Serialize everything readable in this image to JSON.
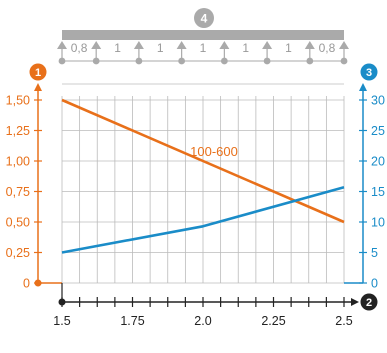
{
  "badges": {
    "left_axis": "1",
    "bottom_axis": "2",
    "right_axis": "3",
    "span_diagram": "4"
  },
  "span_diagram": {
    "segments": [
      "0,8",
      "1",
      "1",
      "1",
      "1",
      "1",
      "0,8"
    ]
  },
  "colors": {
    "left_axis": "#e8701a",
    "right_axis": "#1a8cc8",
    "bottom_axis": "#222222",
    "line_orange": "#e8701a",
    "line_blue": "#1a8cc8",
    "grid": "#bbbbbb",
    "beam": "#aaaaaa"
  },
  "chart_data": {
    "type": "line",
    "title": "",
    "x": {
      "min": 1.5,
      "max": 2.5,
      "ticks": [
        1.5,
        1.75,
        2.0,
        2.25,
        2.5
      ],
      "tick_labels": [
        "1.5",
        "1.75",
        "2.0",
        "2.25",
        "2.5"
      ],
      "minor_step": 0.0625
    },
    "y_left": {
      "min": 0,
      "max": 1.5,
      "ticks": [
        0,
        0.25,
        0.5,
        0.75,
        1.0,
        1.25,
        1.5
      ],
      "tick_labels": [
        "0",
        "0,25",
        "0,50",
        "0,75",
        "1,00",
        "1,25",
        "1,50"
      ]
    },
    "y_right": {
      "min": 0,
      "max": 30,
      "ticks": [
        0,
        5,
        10,
        15,
        20,
        25,
        30
      ],
      "tick_labels": [
        "0",
        "5",
        "10",
        "15",
        "20",
        "25",
        "30"
      ]
    },
    "series": [
      {
        "name": "100-600",
        "axis": "left",
        "color": "#e8701a",
        "points": [
          [
            1.5,
            1.5
          ],
          [
            2.5,
            0.5
          ]
        ]
      },
      {
        "axis": "right",
        "color": "#1a8cc8",
        "points": [
          [
            1.5,
            5
          ],
          [
            2.0,
            9.3
          ],
          [
            2.5,
            15.7
          ]
        ]
      }
    ],
    "grid": true
  }
}
